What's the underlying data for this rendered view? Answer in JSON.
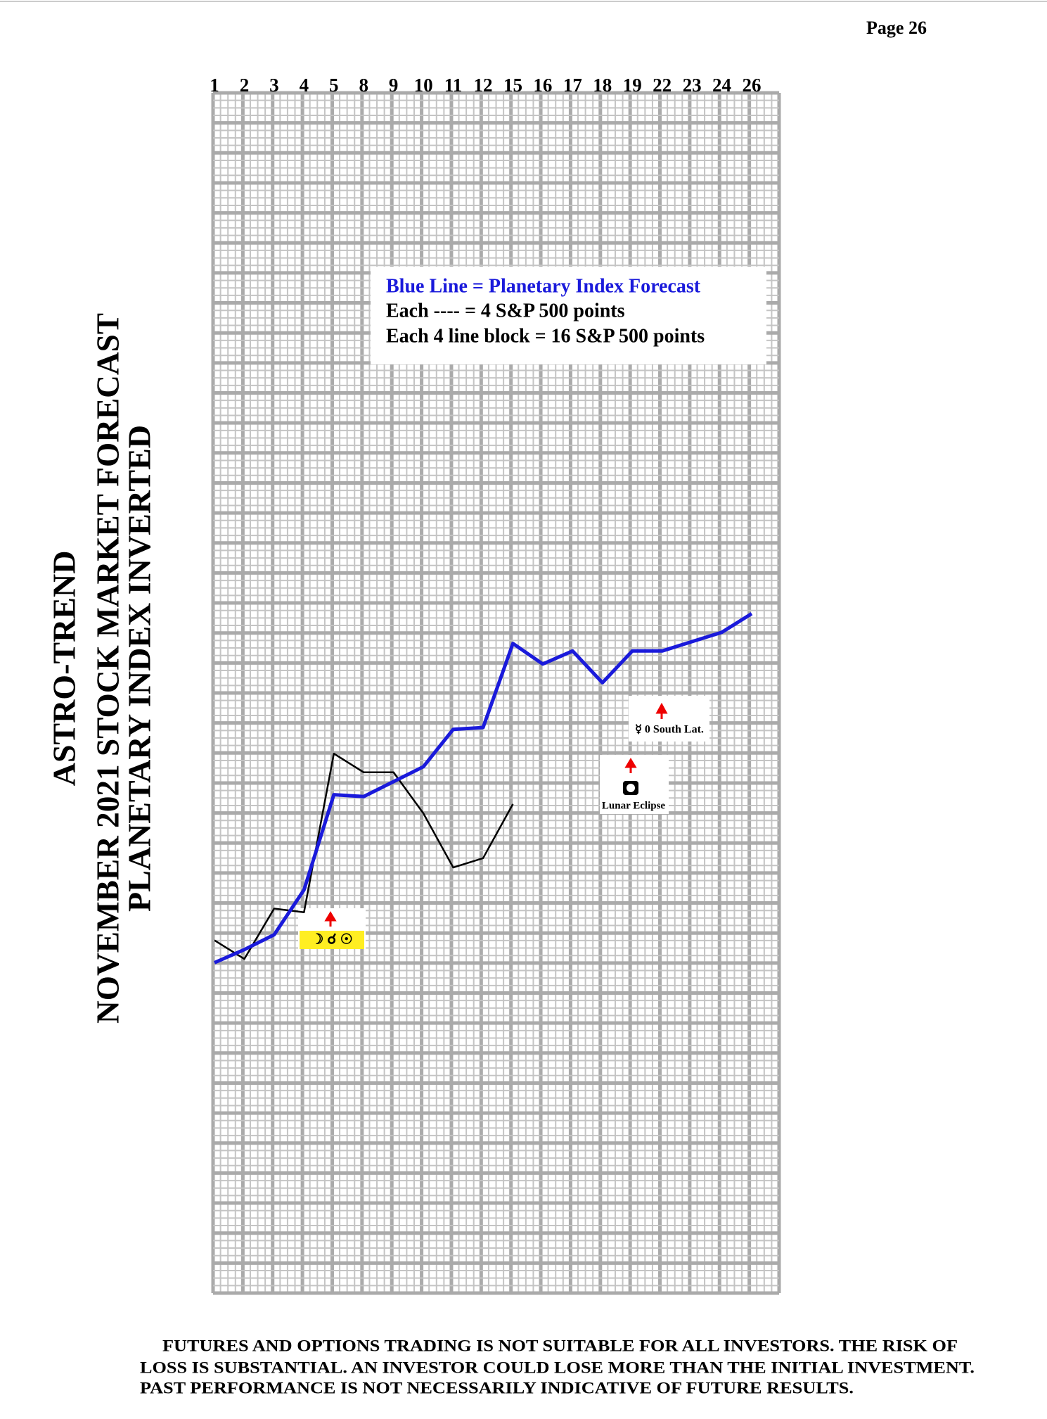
{
  "header": {
    "page": "Page  26"
  },
  "chart_data": {
    "type": "line",
    "title": [
      "ASTRO-TREND",
      "NOVEMBER 2021 STOCK MARKET FORECAST",
      "PLANETARY INDEX INVERTED"
    ],
    "categories": [
      "1",
      "2",
      "3",
      "4",
      "5",
      "8",
      "9",
      "10",
      "11",
      "12",
      "15",
      "16",
      "17",
      "18",
      "19",
      "22",
      "23",
      "24",
      "26"
    ],
    "series": [
      {
        "name": "Blue Line = Planetary Index Forecast",
        "color": "#1a1adb",
        "values": [
          177,
          184,
          192,
          216,
          267,
          266,
          274,
          282,
          302,
          303,
          348,
          337,
          344,
          327,
          344,
          344,
          349,
          354,
          364
        ]
      },
      {
        "color": "#000000",
        "values": [
          189,
          179,
          206,
          204,
          289,
          279,
          279,
          257,
          228,
          233,
          262,
          null,
          null,
          null,
          null,
          null,
          null,
          null,
          null
        ]
      }
    ],
    "notes": [
      "Each ---- =   4 S&P 500 points",
      "Each 4 line block =  16  S&P 500 points"
    ],
    "events": [
      "☽  ☌  ☉",
      "Lunar Eclipse",
      "☿  0 South Lat."
    ],
    "ylim": [
      0,
      643
    ],
    "grid": true
  },
  "footer": {
    "lines": [
      "FUTURES AND OPTIONS TRADING IS NOT SUITABLE FOR ALL INVESTORS.  THE RISK OF",
      "LOSS IS SUBSTANTIAL.  AN INVESTOR COULD LOSE MORE THAN THE INITIAL INVESTMENT.",
      "PAST PERFORMANCE IS NOT NECESSARILY INDICATIVE OF FUTURE RESULTS."
    ]
  }
}
